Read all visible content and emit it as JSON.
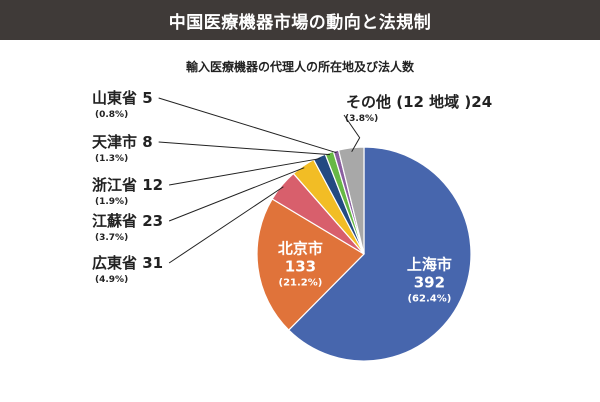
{
  "header": {
    "title": "中国医療機器市場の動向と法規制"
  },
  "chart_data": {
    "type": "pie",
    "title": "輸入医療機器の代理人の所在地及び法人数",
    "slices": [
      {
        "name": "上海市",
        "value": 392,
        "value_text": "392",
        "percent": "(62.4%)",
        "color": "#4766ad"
      },
      {
        "name": "北京市",
        "value": 133,
        "value_text": "133",
        "percent": "(21.2%)",
        "color": "#e0733a"
      },
      {
        "name": "広東省",
        "value": 31,
        "value_text": "31",
        "percent": "(4.9%)",
        "color": "#d85f6c"
      },
      {
        "name": "江蘇省",
        "value": 23,
        "value_text": "23",
        "percent": "(3.7%)",
        "color": "#f2bd25"
      },
      {
        "name": "浙江省",
        "value": 12,
        "value_text": "12",
        "percent": "(1.9%)",
        "color": "#234a82"
      },
      {
        "name": "天津市",
        "value": 8,
        "value_text": "8",
        "percent": "(1.3%)",
        "color": "#67b845"
      },
      {
        "name": "山東省",
        "value": 5,
        "value_text": "5",
        "percent": "(0.8%)",
        "color": "#8a5fa0"
      },
      {
        "name": "その他",
        "value": 24,
        "value_text": "(12 地域 )24",
        "percent": "(3.8%)",
        "color": "#a8a8a8"
      }
    ]
  }
}
